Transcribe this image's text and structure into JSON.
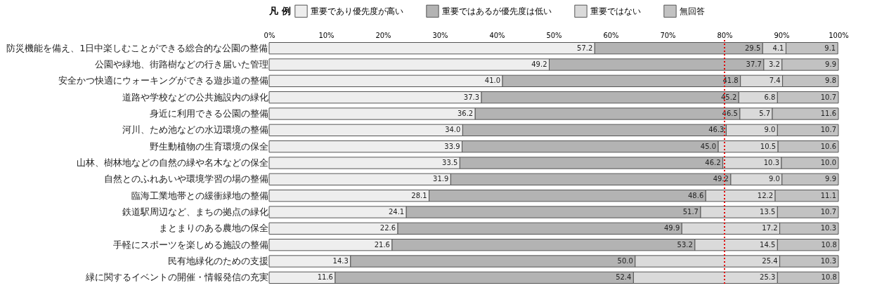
{
  "chart_data": {
    "type": "bar",
    "orientation": "horizontal",
    "stacked": true,
    "legend_title": "凡 例",
    "legend": "top",
    "categories": [
      "防災機能を備え、1日中楽しむことができる総合的な公園の整備",
      "公園や緑地、街路樹などの行き届いた管理",
      "安全かつ快適にウォーキングができる遊歩道の整備",
      "道路や学校などの公共施設内の緑化",
      "身近に利用できる公園の整備",
      "河川、ため池などの水辺環境の整備",
      "野生動植物の生育環境の保全",
      "山林、樹林地などの自然の緑や名木などの保全",
      "自然とのふれあいや環境学習の場の整備",
      "臨海工業地帯との緩衝緑地の整備",
      "鉄道駅周辺など、まちの拠点の緑化",
      "まとまりのある農地の保全",
      "手軽にスポーツを楽しめる施設の整備",
      "民有地緑化のための支援",
      "緑に関するイベントの開催・情報発信の充実"
    ],
    "series": [
      {
        "name": "重要であり優先度が高い",
        "color": "#eeeeee",
        "values": [
          57.2,
          49.2,
          41.0,
          37.3,
          36.2,
          34.0,
          33.9,
          33.5,
          31.9,
          28.1,
          24.1,
          22.6,
          21.6,
          14.3,
          11.6
        ],
        "value_labels": [
          "57.2",
          "49.2",
          "41.0",
          "37.3",
          "36.2",
          "34.0",
          "33.9",
          "33.5",
          "31.9",
          "28.1",
          "24.1",
          "22.6",
          "21.6",
          "14.3",
          "11.6"
        ]
      },
      {
        "name": "重要ではあるが優先度は低い",
        "color": "#b3b3b3",
        "values": [
          29.5,
          37.7,
          41.8,
          45.2,
          46.5,
          46.3,
          45.0,
          46.2,
          49.2,
          48.6,
          51.7,
          49.9,
          53.2,
          50.0,
          52.4
        ],
        "value_labels": [
          "29.5",
          "37.7",
          "41.8",
          "45.2",
          "46.5",
          "46.3",
          "45.0",
          "46.2",
          "49.2",
          "48.6",
          "51.7",
          "49.9",
          "53.2",
          "50.0",
          "52.4"
        ]
      },
      {
        "name": "重要ではない",
        "color": "#dadada",
        "values": [
          4.1,
          3.2,
          7.4,
          6.8,
          5.7,
          9.0,
          10.5,
          10.3,
          9.0,
          12.2,
          13.5,
          17.2,
          14.5,
          25.4,
          25.3
        ],
        "value_labels": [
          "4.1",
          "3.2",
          "7.4",
          "6.8",
          "5.7",
          "9.0",
          "10.5",
          "10.3",
          "9.0",
          "12.2",
          "13.5",
          "17.2",
          "14.5",
          "25.4",
          "25.3"
        ]
      },
      {
        "name": "無回答",
        "color": "#c2c2c2",
        "values": [
          9.1,
          9.9,
          9.8,
          10.7,
          11.6,
          10.7,
          10.6,
          10.0,
          9.9,
          11.1,
          10.7,
          10.3,
          10.8,
          10.3,
          10.8
        ],
        "value_labels": [
          "9.1",
          "9.9",
          "9.8",
          "10.7",
          "11.6",
          "10.7",
          "10.6",
          "10.0",
          "9.9",
          "11.1",
          "10.7",
          "10.3",
          "10.8",
          "10.3",
          "10.8"
        ]
      }
    ],
    "xlim": [
      0,
      100
    ],
    "xticks": [
      {
        "value": 0,
        "label": "0%"
      },
      {
        "value": 10,
        "label": "10%"
      },
      {
        "value": 20,
        "label": "20%"
      },
      {
        "value": 30,
        "label": "30%"
      },
      {
        "value": 40,
        "label": "40%"
      },
      {
        "value": 50,
        "label": "50%"
      },
      {
        "value": 60,
        "label": "60%"
      },
      {
        "value": 70,
        "label": "70%"
      },
      {
        "value": 80,
        "label": "80%"
      },
      {
        "value": 90,
        "label": "90%"
      },
      {
        "value": 100,
        "label": "100%"
      }
    ],
    "ref_lines": [
      {
        "axis": "x",
        "value": 80,
        "color": "#e00000",
        "line_style": "dotted"
      }
    ]
  }
}
